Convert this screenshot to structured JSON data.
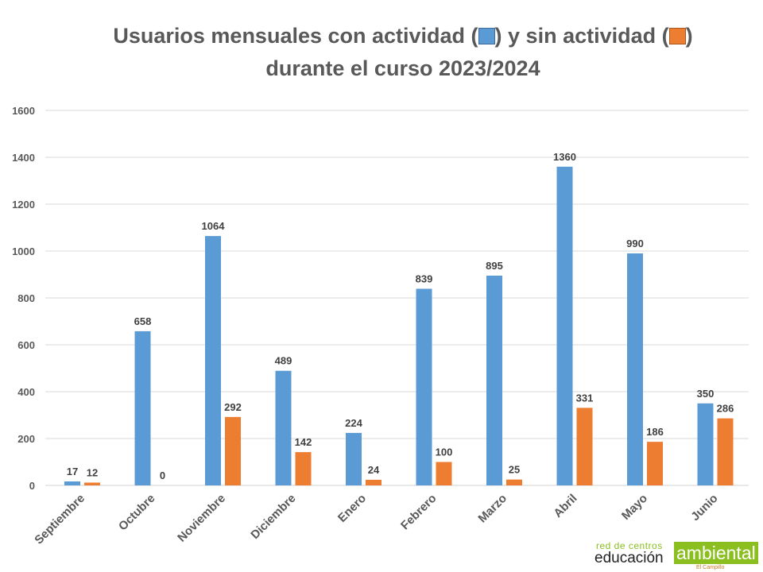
{
  "chart_data": {
    "type": "bar",
    "title_line1_part1": "Usuarios mensuales con actividad (",
    "title_line1_part2": ") y sin actividad (",
    "title_line1_part3": ")",
    "title_line2": "durante el curso 2023/2024",
    "categories": [
      "Septiembre",
      "Octubre",
      "Noviembre",
      "Diciembre",
      "Enero",
      "Febrero",
      "Marzo",
      "Abril",
      "Mayo",
      "Junio"
    ],
    "series": [
      {
        "name": "con actividad",
        "color": "#5b9bd5",
        "values": [
          17,
          658,
          1064,
          489,
          224,
          839,
          895,
          1360,
          990,
          350
        ]
      },
      {
        "name": "sin actividad",
        "color": "#ed7d31",
        "values": [
          12,
          0,
          292,
          142,
          24,
          100,
          25,
          331,
          186,
          286
        ]
      }
    ],
    "ylim": [
      0,
      1600
    ],
    "yticks": [
      0,
      200,
      400,
      600,
      800,
      1000,
      1200,
      1400,
      1600
    ],
    "grid": true,
    "xlabel": "",
    "ylabel": ""
  },
  "logo": {
    "line1": "red de centros",
    "line2": "educación",
    "line3": "ambiental",
    "line4": "El Campillo"
  }
}
